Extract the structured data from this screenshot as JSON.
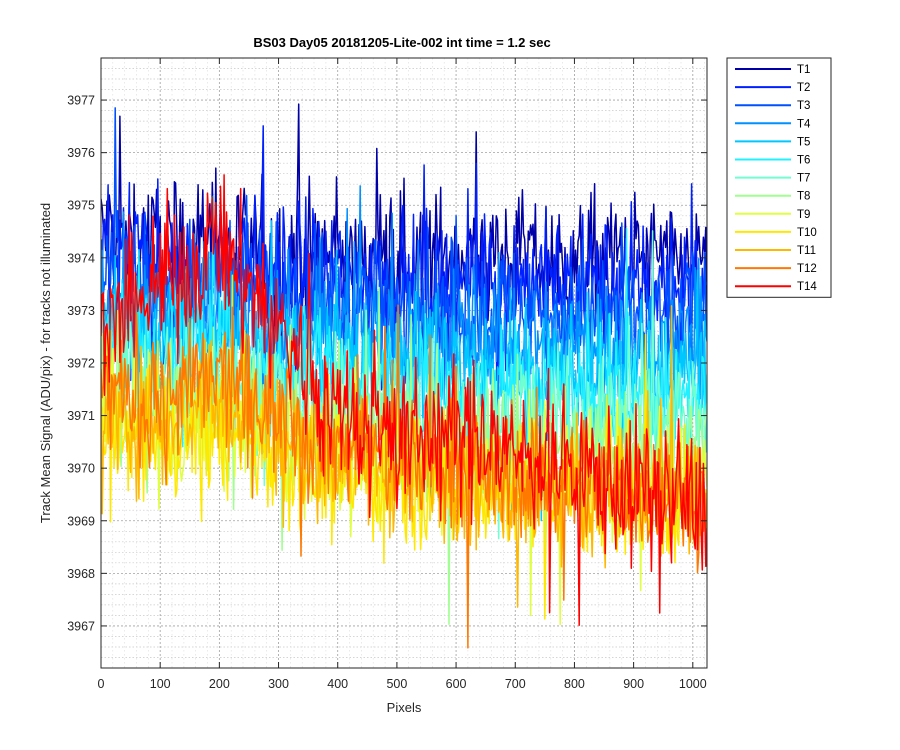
{
  "chart_data": {
    "type": "line",
    "title": "BS03 Day05 20181205-Lite-002 int time = 1.2 sec",
    "xlabel": "Pixels",
    "ylabel": "Track Mean Signal (ADU/pix) - for tracks not illuminated",
    "xlim": [
      0,
      1024
    ],
    "ylim": [
      3966.2,
      3977.8
    ],
    "xticks": [
      "0",
      "100",
      "200",
      "300",
      "400",
      "500",
      "600",
      "700",
      "800",
      "900",
      "1000"
    ],
    "yticks": [
      "3967",
      "3968",
      "3969",
      "3970",
      "3971",
      "3972",
      "3973",
      "3974",
      "3975",
      "3976",
      "3977"
    ],
    "grid": "on",
    "minor_grid": "on",
    "legend_position": "outside-top-right",
    "series": [
      {
        "name": "T1",
        "color": "#0000a8",
        "values_sampled": {
          "x": [
            0,
            100,
            200,
            300,
            400,
            500,
            600,
            700,
            800,
            900,
            1024
          ],
          "y": [
            3974.5,
            3974.2,
            3974.3,
            3974.1,
            3974.0,
            3974.0,
            3974.1,
            3974.0,
            3973.9,
            3974.0,
            3973.8
          ]
        }
      },
      {
        "name": "T2",
        "color": "#0020ff",
        "values_sampled": {
          "x": [
            0,
            100,
            200,
            300,
            400,
            500,
            600,
            700,
            800,
            900,
            1024
          ],
          "y": [
            3974.2,
            3973.9,
            3973.9,
            3973.8,
            3973.7,
            3973.6,
            3973.6,
            3973.6,
            3973.5,
            3973.5,
            3973.4
          ]
        }
      },
      {
        "name": "T3",
        "color": "#0050ff",
        "values_sampled": {
          "x": [
            0,
            100,
            200,
            300,
            400,
            500,
            600,
            700,
            800,
            900,
            1024
          ],
          "y": [
            3973.8,
            3973.4,
            3973.5,
            3973.3,
            3973.2,
            3973.1,
            3973.1,
            3973.0,
            3973.0,
            3973.0,
            3972.9
          ]
        }
      },
      {
        "name": "T4",
        "color": "#0090ff",
        "values_sampled": {
          "x": [
            0,
            100,
            200,
            300,
            400,
            500,
            600,
            700,
            800,
            900,
            1024
          ],
          "y": [
            3973.3,
            3972.9,
            3973.0,
            3972.8,
            3972.6,
            3972.5,
            3972.5,
            3972.4,
            3972.4,
            3972.4,
            3972.3
          ]
        }
      },
      {
        "name": "T5",
        "color": "#00c8ff",
        "values_sampled": {
          "x": [
            0,
            100,
            200,
            300,
            400,
            500,
            600,
            700,
            800,
            900,
            1024
          ],
          "y": [
            3972.9,
            3972.5,
            3972.6,
            3972.4,
            3972.2,
            3972.0,
            3972.0,
            3971.9,
            3971.9,
            3971.9,
            3971.8
          ]
        }
      },
      {
        "name": "T6",
        "color": "#20f0ff",
        "values_sampled": {
          "x": [
            0,
            100,
            200,
            300,
            400,
            500,
            600,
            700,
            800,
            900,
            1024
          ],
          "y": [
            3972.5,
            3972.1,
            3972.2,
            3972.0,
            3971.7,
            3971.6,
            3971.5,
            3971.5,
            3971.4,
            3971.4,
            3971.3
          ]
        }
      },
      {
        "name": "T7",
        "color": "#70ffd0",
        "values_sampled": {
          "x": [
            0,
            100,
            200,
            300,
            400,
            500,
            600,
            700,
            800,
            900,
            1024
          ],
          "y": [
            3972.0,
            3971.6,
            3971.7,
            3971.5,
            3971.2,
            3971.1,
            3971.0,
            3971.0,
            3970.9,
            3970.9,
            3970.8
          ]
        }
      },
      {
        "name": "T8",
        "color": "#a0ff90",
        "values_sampled": {
          "x": [
            0,
            100,
            200,
            300,
            400,
            500,
            600,
            700,
            800,
            900,
            1024
          ],
          "y": [
            3971.5,
            3971.1,
            3971.2,
            3971.0,
            3970.7,
            3970.6,
            3970.5,
            3970.5,
            3970.4,
            3970.4,
            3970.3
          ]
        }
      },
      {
        "name": "T9",
        "color": "#e0ff40",
        "values_sampled": {
          "x": [
            0,
            100,
            200,
            300,
            400,
            500,
            600,
            700,
            800,
            900,
            1024
          ],
          "y": [
            3971.0,
            3970.7,
            3970.8,
            3970.5,
            3970.2,
            3970.1,
            3970.0,
            3970.0,
            3969.9,
            3969.9,
            3969.8
          ]
        }
      },
      {
        "name": "T10",
        "color": "#ffe800",
        "values_sampled": {
          "x": [
            0,
            100,
            200,
            300,
            400,
            500,
            600,
            700,
            800,
            900,
            1024
          ],
          "y": [
            3970.7,
            3970.5,
            3970.8,
            3970.3,
            3969.9,
            3969.8,
            3969.7,
            3969.6,
            3969.5,
            3969.4,
            3969.3
          ]
        }
      },
      {
        "name": "T11",
        "color": "#ffb800",
        "values_sampled": {
          "x": [
            0,
            100,
            200,
            300,
            400,
            500,
            600,
            700,
            800,
            900,
            1024
          ],
          "y": [
            3971.0,
            3970.9,
            3971.3,
            3970.8,
            3970.2,
            3970.0,
            3969.9,
            3969.7,
            3969.6,
            3969.5,
            3969.4
          ]
        }
      },
      {
        "name": "T12",
        "color": "#ff7800",
        "values_sampled": {
          "x": [
            0,
            100,
            200,
            300,
            400,
            500,
            600,
            700,
            800,
            900,
            1024
          ],
          "y": [
            3971.4,
            3971.3,
            3971.7,
            3971.1,
            3970.5,
            3970.3,
            3970.1,
            3969.9,
            3969.8,
            3969.6,
            3969.5
          ]
        }
      },
      {
        "name": "T14",
        "color": "#ff0000",
        "values_sampled": {
          "x": [
            0,
            100,
            200,
            300,
            400,
            500,
            600,
            700,
            800,
            900,
            1024
          ],
          "y": [
            3972.3,
            3973.5,
            3974.2,
            3972.7,
            3971.0,
            3970.6,
            3970.6,
            3970.3,
            3970.0,
            3969.6,
            3969.3
          ]
        }
      }
    ]
  }
}
